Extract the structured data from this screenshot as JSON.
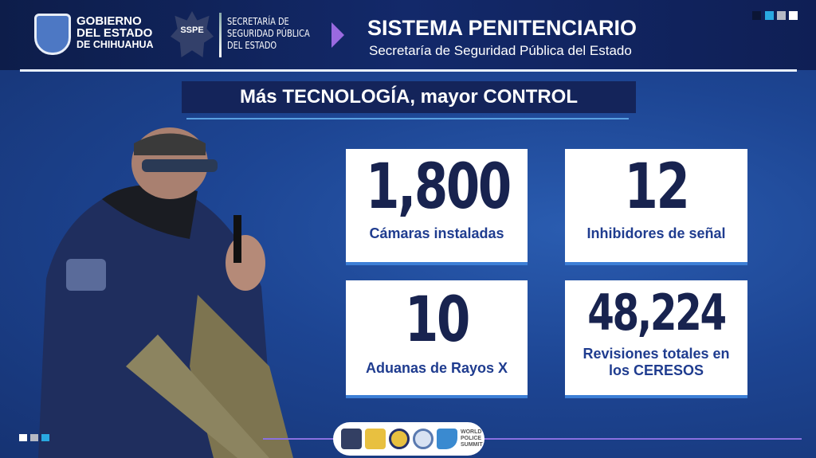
{
  "header": {
    "gov_name": [
      "GOBIERNO",
      "DEL ESTADO",
      "DE CHIHUAHUA"
    ],
    "sspe_badge": "SSPE",
    "sspe_name": [
      "SECRETARÍA DE",
      "SEGURIDAD PÚBLICA",
      "DEL ESTADO"
    ],
    "title": "SISTEMA PENITENCIARIO",
    "subtitle": "Secretaría de Seguridad Pública del Estado",
    "squares": [
      "#0b1535",
      "#29a8e0",
      "#b5b9c4",
      "#ffffff"
    ]
  },
  "banner": "Más TECNOLOGÍA, mayor CONTROL",
  "stats": [
    {
      "value": "1,800",
      "label": "Cámaras instaladas"
    },
    {
      "value": "12",
      "label": "Inhibidores de señal"
    },
    {
      "value": "10",
      "label": "Aduanas de Rayos X"
    },
    {
      "value": "48,224",
      "label": "Revisiones totales en los CERESOS"
    }
  ],
  "footer": {
    "world_police_summit": "WORLD POLICE SUMMIT"
  },
  "colors": {
    "navy": "#18234f",
    "accent_blue": "#3d7fd6",
    "purple": "#9a6ae0"
  }
}
